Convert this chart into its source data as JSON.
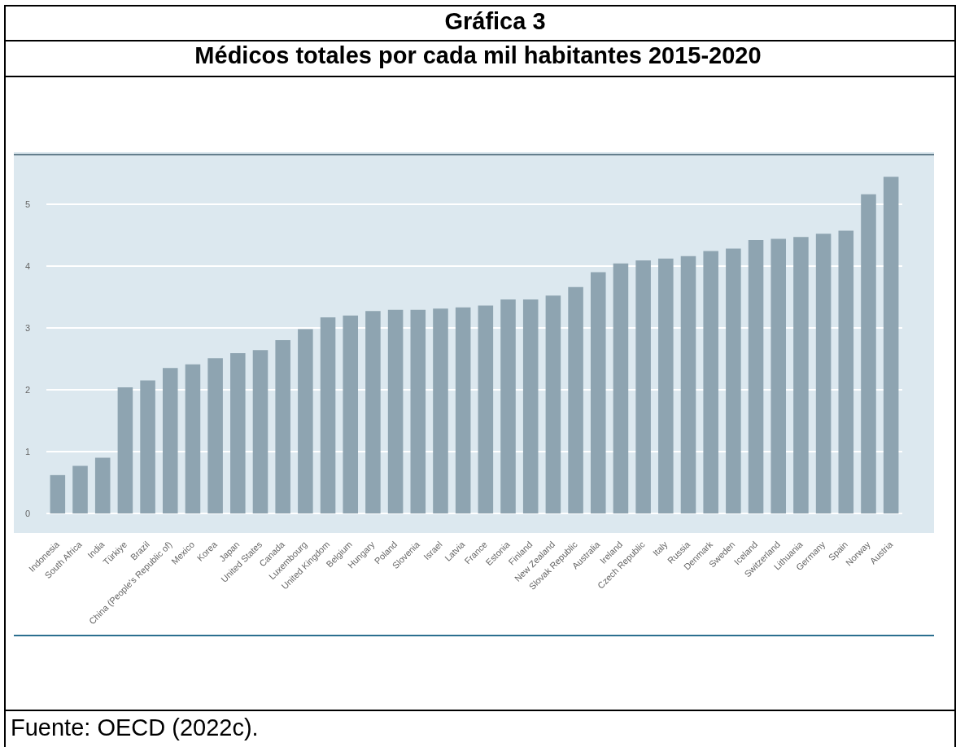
{
  "chart_data": {
    "type": "bar",
    "title": "Gráfica 3",
    "subtitle": "Médicos totales por cada mil habitantes 2015-2020",
    "annotations": [
      "Fuente: OECD (2022c)."
    ],
    "categories": [
      "Indonesia",
      "South Africa",
      "India",
      "Türkiye",
      "Brazil",
      "China (People's Republic of)",
      "Mexico",
      "Korea",
      "Japan",
      "United States",
      "Canada",
      "Luxembourg",
      "United Kingdom",
      "Belgium",
      "Hungary",
      "Poland",
      "Slovenia",
      "Israel",
      "Latvia",
      "France",
      "Estonia",
      "Finland",
      "New Zealand",
      "Slovak Republic",
      "Australia",
      "Ireland",
      "Czech Republic",
      "Italy",
      "Russia",
      "Denmark",
      "Sweden",
      "Iceland",
      "Switzerland",
      "Lithuania",
      "Germany",
      "Spain",
      "Norway",
      "Austria"
    ],
    "values": [
      0.62,
      0.77,
      0.9,
      2.04,
      2.15,
      2.35,
      2.41,
      2.51,
      2.59,
      2.64,
      2.8,
      2.98,
      3.17,
      3.2,
      3.27,
      3.29,
      3.29,
      3.31,
      3.33,
      3.36,
      3.46,
      3.46,
      3.52,
      3.66,
      3.9,
      4.04,
      4.09,
      4.12,
      4.16,
      4.24,
      4.28,
      4.42,
      4.44,
      4.47,
      4.52,
      4.57,
      5.16,
      5.44
    ],
    "color": "#8ea4b1",
    "ylim": [
      0,
      5.8
    ],
    "yticks": [
      0,
      1,
      2,
      3,
      4,
      5
    ],
    "grid": "y"
  }
}
